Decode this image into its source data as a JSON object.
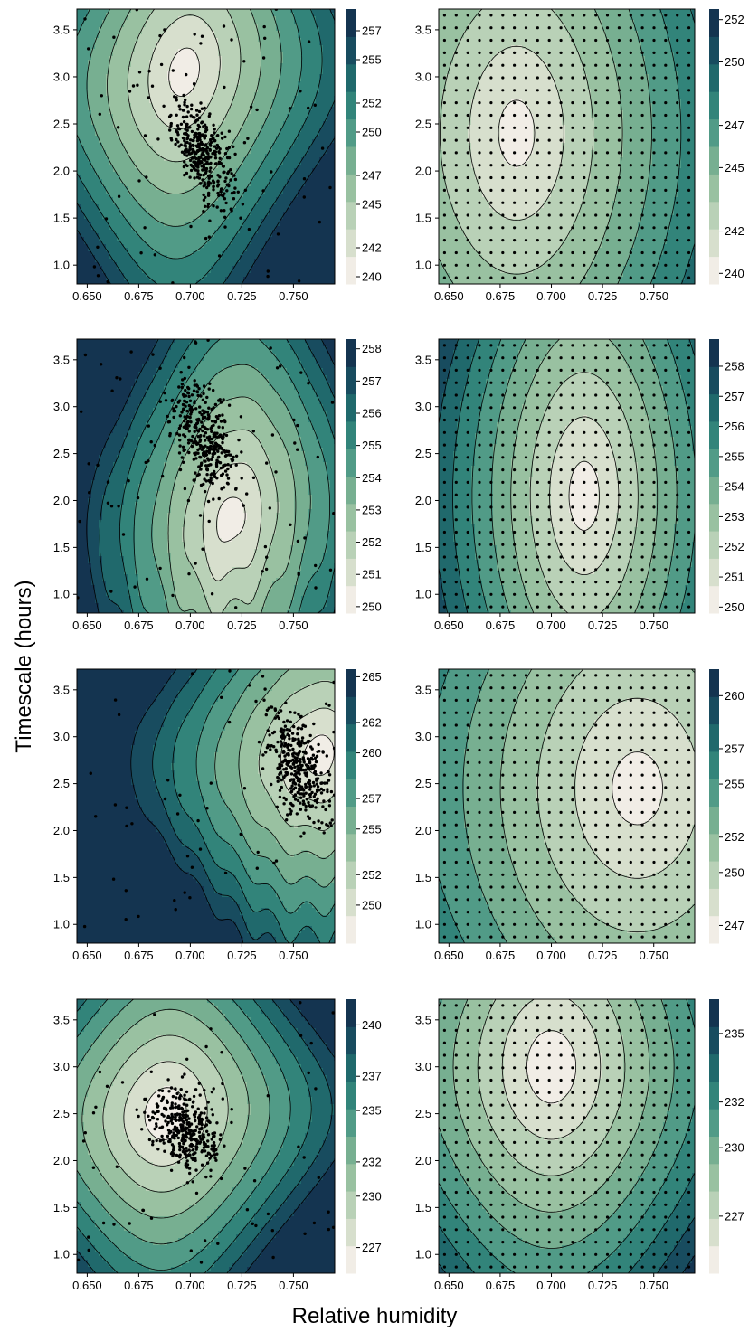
{
  "figure": {
    "xlabel": "Relative humidity",
    "ylabel": "Timescale (hours)",
    "colors": [
      "#fdf5f3",
      "#e2e4d5",
      "#c2d5bd",
      "#9fc4a4",
      "#79b092",
      "#4f9a86",
      "#2d8078",
      "#1c6168",
      "#16405a",
      "#132a48"
    ]
  },
  "chart_data": [
    {
      "type": "contour",
      "panel": "row1-left",
      "xlim": [
        0.645,
        0.77
      ],
      "ylim": [
        0.8,
        3.72
      ],
      "xticks": [
        "0.650",
        "0.675",
        "0.700",
        "0.725",
        "0.750"
      ],
      "yticks": [
        "1.0",
        "1.5",
        "2.0",
        "2.5",
        "3.0",
        "3.5"
      ],
      "colorbar": {
        "min": 239.5,
        "max": 258.5,
        "ticks": [
          "240",
          "242",
          "245",
          "247",
          "250",
          "252",
          "255",
          "257"
        ]
      },
      "surface": {
        "kind": "tilted",
        "min": 240,
        "max": 258,
        "center": [
          0.697,
          3.05
        ],
        "sx": 0.036,
        "sy": 1.25,
        "tilt": -3.2,
        "quartic": 0.7,
        "bump": 0
      },
      "points": {
        "kind": "cloud",
        "n": 360,
        "center": [
          0.706,
          2.2
        ],
        "sx": 0.0075,
        "sy": 0.26,
        "rho": -0.55,
        "scatter": 70
      }
    },
    {
      "type": "contour",
      "panel": "row1-right",
      "xlim": [
        0.645,
        0.77
      ],
      "ylim": [
        0.8,
        3.72
      ],
      "xticks": [
        "0.650",
        "0.675",
        "0.700",
        "0.725",
        "0.750"
      ],
      "yticks": [
        "1.0",
        "1.5",
        "2.0",
        "2.5",
        "3.0",
        "3.5"
      ],
      "colorbar": {
        "min": 239.5,
        "max": 252.5,
        "ticks": [
          "240",
          "242",
          "245",
          "247",
          "250",
          "252"
        ]
      },
      "surface": {
        "kind": "ellipse",
        "min": 240,
        "max": 253,
        "center": [
          0.683,
          2.4
        ],
        "sx": 0.055,
        "sy": 2.2,
        "tilt": 0,
        "quartic": 0.25,
        "bump": 0
      },
      "points": {
        "kind": "grid",
        "nx": 22,
        "ny": 22
      }
    },
    {
      "type": "contour",
      "panel": "row2-left",
      "xlim": [
        0.645,
        0.77
      ],
      "ylim": [
        0.8,
        3.72
      ],
      "xticks": [
        "0.650",
        "0.675",
        "0.700",
        "0.725",
        "0.750"
      ],
      "yticks": [
        "1.0",
        "1.5",
        "2.0",
        "2.5",
        "3.0",
        "3.5"
      ],
      "colorbar": {
        "min": 249.8,
        "max": 258.3,
        "ticks": [
          "250",
          "251",
          "252",
          "253",
          "254",
          "255",
          "256",
          "257",
          "258"
        ]
      },
      "surface": {
        "kind": "tilted",
        "min": 250,
        "max": 259,
        "center": [
          0.72,
          1.8
        ],
        "sx": 0.033,
        "sy": 1.4,
        "tilt": -2.8,
        "quartic": 0.5,
        "bump": 1
      },
      "points": {
        "kind": "cloud",
        "n": 360,
        "center": [
          0.707,
          2.68
        ],
        "sx": 0.008,
        "sy": 0.3,
        "rho": -0.45,
        "scatter": 80
      }
    },
    {
      "type": "contour",
      "panel": "row2-right",
      "xlim": [
        0.645,
        0.77
      ],
      "ylim": [
        0.8,
        3.72
      ],
      "xticks": [
        "0.650",
        "0.675",
        "0.700",
        "0.725",
        "0.750"
      ],
      "yticks": [
        "1.0",
        "1.5",
        "2.0",
        "2.5",
        "3.0",
        "3.5"
      ],
      "colorbar": {
        "min": 249.8,
        "max": 258.9,
        "ticks": [
          "250",
          "251",
          "252",
          "253",
          "254",
          "255",
          "256",
          "257",
          "258"
        ]
      },
      "surface": {
        "kind": "ellipse",
        "min": 250,
        "max": 260,
        "center": [
          0.716,
          2.05
        ],
        "sx": 0.04,
        "sy": 2.0,
        "tilt": 0,
        "quartic": 0.2,
        "bump": 0
      },
      "points": {
        "kind": "grid",
        "nx": 22,
        "ny": 22
      }
    },
    {
      "type": "contour",
      "panel": "row3-left",
      "xlim": [
        0.645,
        0.77
      ],
      "ylim": [
        0.8,
        3.72
      ],
      "xticks": [
        "0.650",
        "0.675",
        "0.700",
        "0.725",
        "0.750"
      ],
      "yticks": [
        "1.0",
        "1.5",
        "2.0",
        "2.5",
        "3.0",
        "3.5"
      ],
      "colorbar": {
        "min": 247.5,
        "max": 265.5,
        "ticks": [
          "250",
          "252",
          "255",
          "257",
          "260",
          "262",
          "265"
        ]
      },
      "surface": {
        "kind": "tilted",
        "min": 248,
        "max": 266,
        "center": [
          0.762,
          2.8
        ],
        "sx": 0.04,
        "sy": 1.1,
        "tilt": -2.2,
        "quartic": 0.55,
        "bump": 1.5
      },
      "points": {
        "kind": "cloud",
        "n": 360,
        "center": [
          0.752,
          2.7
        ],
        "sx": 0.0075,
        "sy": 0.3,
        "rho": -0.5,
        "scatter": 55
      }
    },
    {
      "type": "contour",
      "panel": "row3-right",
      "xlim": [
        0.645,
        0.77
      ],
      "ylim": [
        0.8,
        3.72
      ],
      "xticks": [
        "0.650",
        "0.675",
        "0.700",
        "0.725",
        "0.750"
      ],
      "yticks": [
        "1.0",
        "1.5",
        "2.0",
        "2.5",
        "3.0",
        "3.5"
      ],
      "colorbar": {
        "min": 246,
        "max": 261.5,
        "ticks": [
          "247",
          "250",
          "252",
          "255",
          "257",
          "260"
        ]
      },
      "surface": {
        "kind": "ellipse",
        "min": 246.5,
        "max": 262,
        "center": [
          0.742,
          2.45
        ],
        "sx": 0.07,
        "sy": 2.2,
        "tilt": 0,
        "quartic": 0.2,
        "bump": 0
      },
      "points": {
        "kind": "grid",
        "nx": 22,
        "ny": 22
      }
    },
    {
      "type": "contour",
      "panel": "row4-left",
      "xlim": [
        0.645,
        0.77
      ],
      "ylim": [
        0.8,
        3.72
      ],
      "xticks": [
        "0.650",
        "0.675",
        "0.700",
        "0.725",
        "0.750"
      ],
      "yticks": [
        "1.0",
        "1.5",
        "2.0",
        "2.5",
        "3.0",
        "3.5"
      ],
      "colorbar": {
        "min": 225.5,
        "max": 241.5,
        "ticks": [
          "227",
          "230",
          "232",
          "235",
          "237",
          "240"
        ]
      },
      "surface": {
        "kind": "tilted",
        "min": 225.5,
        "max": 242,
        "center": [
          0.688,
          2.5
        ],
        "sx": 0.04,
        "sy": 1.1,
        "tilt": -1.5,
        "quartic": 0.7,
        "bump": 0
      },
      "points": {
        "kind": "cloud",
        "n": 360,
        "center": [
          0.698,
          2.33
        ],
        "sx": 0.0085,
        "sy": 0.22,
        "rho": -0.3,
        "scatter": 60
      }
    },
    {
      "type": "contour",
      "panel": "row4-right",
      "xlim": [
        0.645,
        0.77
      ],
      "ylim": [
        0.8,
        3.72
      ],
      "xticks": [
        "0.650",
        "0.675",
        "0.700",
        "0.725",
        "0.750"
      ],
      "yticks": [
        "1.0",
        "1.5",
        "2.0",
        "2.5",
        "3.0",
        "3.5"
      ],
      "colorbar": {
        "min": 224.5,
        "max": 236.5,
        "ticks": [
          "227",
          "230",
          "232",
          "235"
        ]
      },
      "surface": {
        "kind": "ellipse",
        "min": 224.5,
        "max": 237,
        "center": [
          0.7,
          3.0
        ],
        "sx": 0.048,
        "sy": 1.55,
        "tilt": 0,
        "quartic": 0.35,
        "bump": 0
      },
      "points": {
        "kind": "grid",
        "nx": 22,
        "ny": 22
      }
    }
  ]
}
